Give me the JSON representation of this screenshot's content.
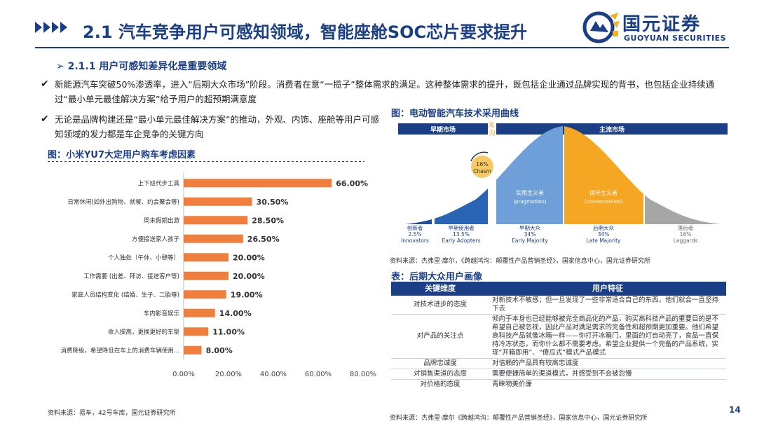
{
  "header": {
    "title": "2.1 汽车竞争用户可感知领域，智能座舱SOC芯片要求提升",
    "logo_cn": "国元证券",
    "logo_en": "GUOYUAN SECURITIES"
  },
  "section": {
    "heading": "➢ 2.1.1 用户可感知差异化是重要领域",
    "bullets": [
      "新能源汽车突破50%渗透率，进入“后期大众市场”阶段。消费者在意“一揽子”整体需求的满足。这种整体需求的提升，既包括企业通过品牌实现的背书，也包括企业持续通过“最小单元最佳解决方案”给予用户的超预期满意度",
      "无论是品牌构建还是“最小单元最佳解决方案”的推动，外观、内饰、座舱等用户可感知领域的发力都是车企竞争的关键方向"
    ]
  },
  "left_figure": {
    "title": "图：小米YU7大定用户购车考虑因素",
    "source": "资料来源：易车，42号车库，国元证券研究所"
  },
  "chart_data": {
    "type": "bar",
    "orientation": "horizontal",
    "categories": [
      "上下班代步工具",
      "日常休闲(如外出购物、就餐、约会聚会等)",
      "周末假期出游",
      "方便接送家人孩子",
      "个人独处（午休、小憩等）",
      "工作需要 (出差、拜访、接送客户等)",
      "家庭人员结构变化 (结婚、生子、二胎等)",
      "车内影音娱乐",
      "收入提高，更换更好的车型",
      "消费降级，希望降低在车上的消费车辆使用..."
    ],
    "values": [
      66.0,
      30.5,
      28.5,
      26.5,
      20.0,
      20.0,
      19.0,
      14.0,
      11.0,
      8.0
    ],
    "value_labels": [
      "66.00%",
      "30.50%",
      "28.50%",
      "26.50%",
      "20.00%",
      "20.00%",
      "19.00%",
      "14.00%",
      "11.00%",
      "8.00%"
    ],
    "x_ticks": [
      "0.00%",
      "20.00%",
      "40.00%",
      "60.00%",
      "80.00%"
    ],
    "xlim": [
      0,
      80
    ],
    "grid": false,
    "bar_color": "#f07e3c"
  },
  "right_figure": {
    "title": "图：电动智能汽车技术采用曲线",
    "source": "资料来源：杰弗里·摩尔，《跨越鸿沟：颠覆性产品营销圣经》，国家信息中心，国元证券研究所",
    "early_market": "早期市场",
    "mainstream_market": "主流市场",
    "chasm_label": "鸿沟",
    "chasm_percent": "16%",
    "chasm_en": "Chasm",
    "segments": [
      {
        "cn": "创新者",
        "percent": "2.5%",
        "en": "Innovators",
        "color": "#1b4f9c"
      },
      {
        "cn": "早期使用者",
        "percent": "13.5%",
        "en": "Early Adopters",
        "color": "#2a64b4"
      },
      {
        "cn": "早期大众",
        "percent": "34%",
        "en": "Early Majority",
        "color": "#6e9fd8",
        "inner_cn": "实用主义者",
        "inner_en": "(pragmatists)"
      },
      {
        "cn": "后期大众",
        "percent": "34%",
        "en": "Late Majority",
        "color": "#f5a623",
        "inner_cn": "保守主义者",
        "inner_en": "(conservatives)"
      },
      {
        "cn": "落后者",
        "percent": "16%",
        "en": "Laggards",
        "color": "#a6a6a6"
      }
    ]
  },
  "table": {
    "title": "表：后期大众用户画像",
    "headers": [
      "关键维度",
      "用户特征"
    ],
    "rows": [
      {
        "dimension": "对技术进步的态度",
        "feature": "对新技术不敏感；但一旦发现了一些非常适合自己的东西，他们就会一直坚持下去"
      },
      {
        "dimension": "对产品的关注点",
        "feature": "倾向于本身也已经能够被完全商品化的产品，购买高科技产品的重要目的是不希望自己被忽视，因此产品对满足需求的完备性和超预期更加重要。他们希望高科技产品就像冰箱一样——你打开冰箱门，里面的灯自动亮了，食品一直保持冷冻状态，而你什么都不需要考虑。希望企业提供一个完备的产品系统，实现“开箱即用”、“傻瓜式”模式产品模式"
      },
      {
        "dimension": "品牌忠诚度",
        "feature": "对信赖的产品具有较高忠诚度"
      },
      {
        "dimension": "对销售渠道的态度",
        "feature": "需要便捷简单的渠道模式，并感受到不会被忽慢"
      },
      {
        "dimension": "对价格的态度",
        "feature": "青睐物美价廉"
      }
    ],
    "source": "资料来源：杰弗里·摩尔《跨越鸿沟：颠覆性产品营销圣经》，国家信息中心，国元证券研究所"
  },
  "page_number": "14",
  "colors": {
    "brand": "#1b3f86",
    "accent": "#f07e3c",
    "gold": "#f2b01e"
  }
}
